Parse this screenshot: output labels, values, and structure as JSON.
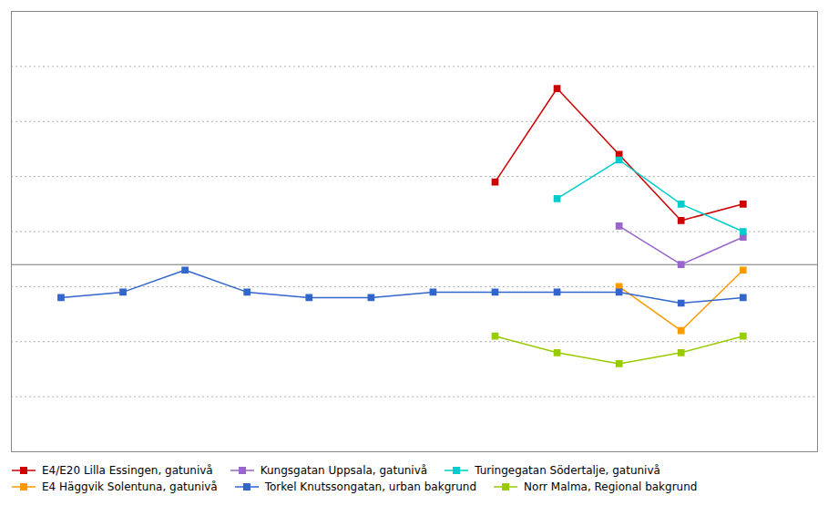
{
  "chart_data": {
    "type": "line",
    "x": [
      2000,
      2001,
      2002,
      2003,
      2004,
      2005,
      2006,
      2007,
      2008,
      2009,
      2010,
      2011
    ],
    "series": [
      {
        "name": "E4/E20 Lilla Essingen, gatunivå",
        "color": "#cc0000",
        "values": [
          null,
          null,
          null,
          null,
          null,
          null,
          null,
          24.5,
          33.0,
          27.0,
          21.0,
          22.5
        ]
      },
      {
        "name": "Kungsgatan Uppsala, gatunivå",
        "color": "#9966cc",
        "values": [
          null,
          null,
          null,
          null,
          null,
          null,
          null,
          null,
          null,
          20.5,
          17.0,
          19.5
        ]
      },
      {
        "name": "Turingegatan Södertalje, gatunivå",
        "color": "#00cccc",
        "values": [
          null,
          null,
          null,
          null,
          null,
          null,
          null,
          null,
          23.0,
          26.5,
          22.5,
          20.0
        ]
      },
      {
        "name": "E4 Häggvik Solentuna, gatunivå",
        "color": "#ff9900",
        "values": [
          null,
          null,
          null,
          null,
          null,
          null,
          null,
          null,
          null,
          15.0,
          11.0,
          16.5
        ]
      },
      {
        "name": "Torkel Knutssongatan, urban bakgrund",
        "color": "#3366cc",
        "values": [
          14.0,
          14.5,
          16.5,
          14.5,
          14.0,
          14.0,
          14.5,
          14.5,
          14.5,
          14.5,
          13.5,
          14.0
        ]
      },
      {
        "name": "Norr Malma, Regional bakgrund",
        "color": "#99cc00",
        "values": [
          null,
          null,
          null,
          null,
          null,
          null,
          null,
          10.5,
          9.0,
          8.0,
          9.0,
          10.5
        ]
      }
    ],
    "xlim": [
      1999.2,
      2012.2
    ],
    "ylim": [
      0,
      40
    ],
    "yticks": [
      5,
      10,
      15,
      20,
      25,
      30,
      35
    ],
    "reference_line": 17.0,
    "grid": true,
    "tick_labels": false,
    "legend": "lower left",
    "marker": "square"
  }
}
